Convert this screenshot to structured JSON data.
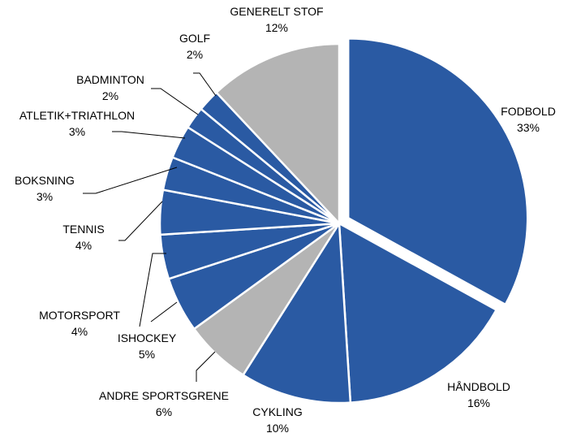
{
  "chart_data": {
    "type": "pie",
    "title": "",
    "slices": [
      {
        "label": "FODBOLD",
        "value": 33,
        "value_label": "33%",
        "color": "#2a5aa3",
        "exploded": true
      },
      {
        "label": "HÅNDBOLD",
        "value": 16,
        "value_label": "16%",
        "color": "#2a5aa3",
        "exploded": false
      },
      {
        "label": "CYKLING",
        "value": 10,
        "value_label": "10%",
        "color": "#2a5aa3",
        "exploded": false
      },
      {
        "label": "ANDRE SPORTSGRENE",
        "value": 6,
        "value_label": "6%",
        "color": "#b4b4b4",
        "exploded": false
      },
      {
        "label": "ISHOCKEY",
        "value": 5,
        "value_label": "5%",
        "color": "#2a5aa3",
        "exploded": false
      },
      {
        "label": "MOTORSPORT",
        "value": 4,
        "value_label": "4%",
        "color": "#2a5aa3",
        "exploded": false
      },
      {
        "label": "TENNIS",
        "value": 4,
        "value_label": "4%",
        "color": "#2a5aa3",
        "exploded": false
      },
      {
        "label": "BOKSNING",
        "value": 3,
        "value_label": "3%",
        "color": "#2a5aa3",
        "exploded": false
      },
      {
        "label": "ATLETIK+TRIATHLON",
        "value": 3,
        "value_label": "3%",
        "color": "#2a5aa3",
        "exploded": false
      },
      {
        "label": "BADMINTON",
        "value": 2,
        "value_label": "2%",
        "color": "#2a5aa3",
        "exploded": false
      },
      {
        "label": "GOLF",
        "value": 2,
        "value_label": "2%",
        "color": "#2a5aa3",
        "exploded": false
      },
      {
        "label": "GENERELT STOF",
        "value": 12,
        "value_label": "12%",
        "color": "#b4b4b4",
        "exploded": false
      }
    ],
    "start": "12 o'clock",
    "direction": "clockwise",
    "legend": "none",
    "labels": "outside with leader lines"
  }
}
